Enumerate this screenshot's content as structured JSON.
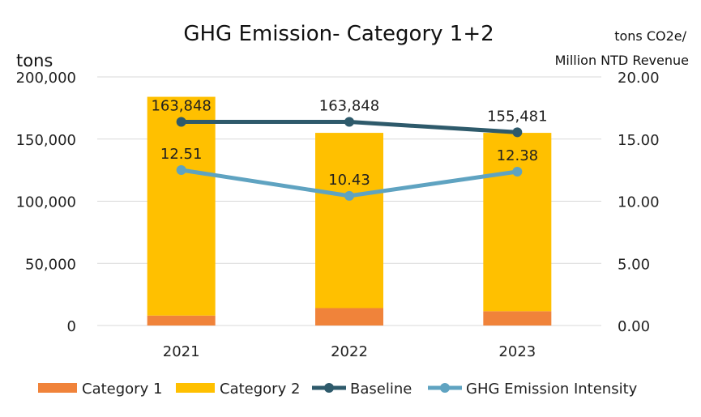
{
  "chart_data": {
    "type": "bar",
    "title": "GHG Emission- Category 1+2",
    "ylabel": "tons",
    "y2label_line1": "tons CO2e/",
    "y2label_line2": "Million NTD Revenue",
    "categories": [
      "2021",
      "2022",
      "2023"
    ],
    "ylim": [
      0,
      200000
    ],
    "y2lim": [
      0,
      20
    ],
    "yticks": [
      "0",
      "50,000",
      "100,000",
      "150,000",
      "200,000"
    ],
    "y2ticks": [
      "0.00",
      "5.00",
      "10.00",
      "15.00",
      "20.00"
    ],
    "stacked": true,
    "series": [
      {
        "name": "Category 1",
        "type": "bar",
        "axis": "left",
        "values": [
          8000,
          14000,
          11500
        ]
      },
      {
        "name": "Category 2",
        "type": "bar",
        "axis": "left",
        "values": [
          176000,
          141000,
          143500
        ]
      },
      {
        "name": "Baseline",
        "type": "line",
        "axis": "left",
        "values": [
          163848,
          163848,
          155481
        ],
        "labels": [
          "163,848",
          "163,848",
          "155,481"
        ]
      },
      {
        "name": "GHG Emission Intensity",
        "type": "line",
        "axis": "right",
        "values": [
          12.51,
          10.43,
          12.38
        ],
        "labels": [
          "12.51",
          "10.43",
          "12.38"
        ]
      }
    ],
    "colors": {
      "category1": "#f0833a",
      "category2": "#ffc000",
      "baseline": "#2e5a6b",
      "intensity": "#5fa3c1",
      "grid": "#d9d9d9"
    },
    "grid": true,
    "legend_position": "bottom"
  }
}
